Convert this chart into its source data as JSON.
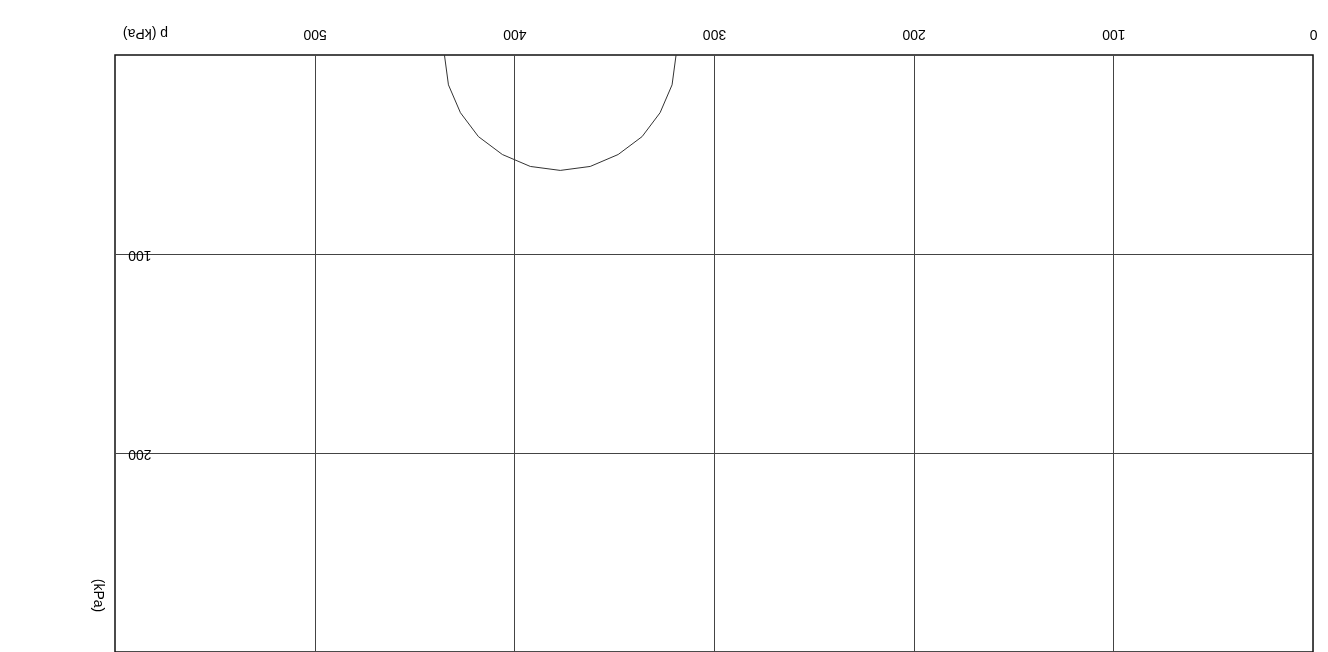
{
  "chart_data": {
    "type": "line",
    "xlabel": "p (kPa)",
    "ylabel": "(kPa)",
    "series": [
      {
        "color": "#333333",
        "x": [
          435,
          433,
          427,
          418,
          406,
          392,
          377,
          362,
          348,
          336,
          327,
          321,
          319
        ],
        "values": [
          0,
          15,
          29,
          41,
          50,
          56,
          58,
          56,
          50,
          41,
          29,
          15,
          0
        ]
      }
    ],
    "xlim": [
      600,
      0
    ],
    "xticks": [
      0,
      100,
      200,
      300,
      400,
      500
    ],
    "ylim": [
      300,
      0
    ],
    "yticks": [
      100,
      200
    ],
    "grid": true,
    "marker": "none",
    "line_style": "solid"
  }
}
